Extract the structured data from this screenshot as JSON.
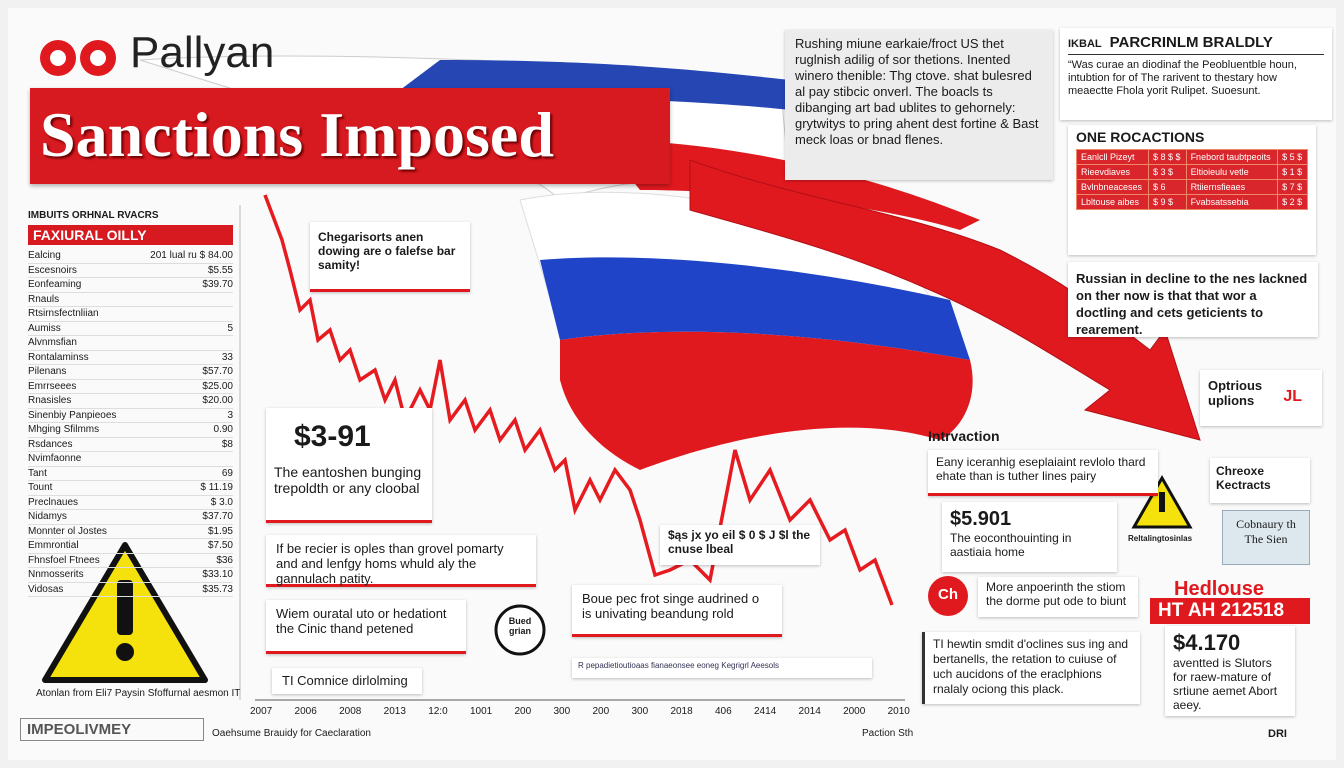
{
  "header": {
    "brand": "Pallyan",
    "title": "Sanctions Imposed"
  },
  "left_panel": {
    "caption": "IMBUITS ORHNAL RVACRS",
    "banner": "FAXIURAL OILLY",
    "rows": [
      {
        "label": "Ealcing",
        "value": "201 lual ru $ 84.00"
      },
      {
        "label": "Escesnoirs",
        "value": "$5.55"
      },
      {
        "label": "Eonfeaming",
        "value": "$39.70"
      },
      {
        "label": "Rnauls"
      },
      {
        "label": "Rtsirnsfectnliian"
      },
      {
        "label": "Aumiss",
        "value": "5"
      },
      {
        "label": "Alvnmsfian"
      },
      {
        "label": "Rontalaminss",
        "value": "33"
      },
      {
        "label": "Pilenans",
        "value": "$57.70"
      },
      {
        "label": "Emrrseees",
        "value": "$25.00"
      },
      {
        "label": "Rnasisles",
        "value": "$20.00"
      },
      {
        "label": "Sinenbiy Panpieoes",
        "value": "3"
      },
      {
        "label": "Mhging Sfilmms",
        "value": "0.90"
      },
      {
        "label": "Rsdances",
        "value": "$8"
      },
      {
        "label": "Nvimfaonne"
      },
      {
        "label": "Tant",
        "value": "69"
      },
      {
        "label": "Tount",
        "value": "$ 11.19"
      },
      {
        "label": "Preclnaues",
        "value": "$ 3.0"
      },
      {
        "label": "Nidamys",
        "value": "$37.70"
      },
      {
        "label": "Monnter ol Jostes",
        "value": "$1.95"
      },
      {
        "label": "Emmrontial",
        "value": "$7.50"
      },
      {
        "label": "Fhnsfoel Ftnees",
        "value": "$36"
      },
      {
        "label": "Nnmosserits",
        "value": "$33.10"
      },
      {
        "label": "Vidosas",
        "value": "$35.73"
      }
    ],
    "footer": "Atonlan from Eli7 Paysin Sfoffurnal aesmon IT"
  },
  "bottom_left": {
    "logo": "IMPEOLIVMEY",
    "caption": "Oaehsume Brauidy for Caeclaration"
  },
  "top_note": {
    "text": "Rushing miune earkaie/froct US thet ruglnish adilig of sor thetions. Inented winero thenible: Thg ctove. shat bulesred al pay stibcic onverl. The boacls ts dibanging art bad ublites to gehornely: grytwitys to pring ahent dest fortine & Bast meck loas or bnad flenes."
  },
  "right_top": {
    "label": "IKBAL",
    "title": "PARCRINLM BRALDLY",
    "text": "“Was curae an diodinaf the Peobluentble houn, intubtion for of The rarivent to thestary how meaectte Fhola yorit Rulipet. Suoesunt."
  },
  "reactions": {
    "title": "ONE ROCACTIONS",
    "rows": [
      [
        "Eanlcll Pizeyt",
        "$ 8 $ $",
        "Fnebord taubtpeoits",
        "$ 5 $"
      ],
      [
        "Rieevdiaves",
        "$ 3 $",
        "Eltioieulu vetle",
        "$ 1 $"
      ],
      [
        "Bvlnbneaceses",
        "$ 6",
        "Rtiiernsfieaes",
        "$ 7 $"
      ],
      [
        "Lbltouse aibes",
        "$ 9 $",
        "Fvabsatssebia",
        "$ 2 $"
      ]
    ]
  },
  "decline_note": "Russian in decline to the nes lackned on ther now is that that wor a doctling and cets geticients to rearement.",
  "options": {
    "text": "Optrious uplions",
    "icon": "JL"
  },
  "callouts": {
    "c1": "Chegarisorts anen dowing are o falefse bar samity!",
    "c2_price": "$3-91",
    "c2": "The eantoshen bunging trepoldth or any cloobal",
    "c3": "If be recier is oples than grovel pomarty and and lenfgy homs whuld aly the gannulach patity.",
    "c4": "Wiem ouratal uto or hedationt the Cinic thand petened",
    "c5": "TI Comnice dirlolming",
    "c6": "$ąs jx yo eil $ 0 $ J $l the cnuse lbeal",
    "c7": "Boue pec frot singe audrined o is univating beandung rold",
    "c8": "R pepadietioutioaas fianaeonsee eoneg Kegrigrl Aeesols",
    "badge": "Bued grian"
  },
  "interaction": {
    "title": "Intrvaction",
    "text": "Eany iceranhig eseplaiaint revlolo thard ehate than is tuther lines pairy",
    "price": "$5.901",
    "price_text": "The eoconthouinting in aastiaia home",
    "ch_icon": "Ch",
    "ch_text": "More anpoerinth the stiom the dorme put ode to biunt",
    "bottom_text": "TI hewtin smdit d'oclines sus ing and bertanells, the retation to cuiuse of uch aucidons of the eraclphions rnalaly ociong this plack."
  },
  "warning_right": "Reltalingtosinlas",
  "check": {
    "title": "Chreoxe Kectracts",
    "note": "Cobnaury th The Sien"
  },
  "headline": {
    "brand": "Hedlouse",
    "banner": "HT AH 212518",
    "price": "$4.170",
    "text": "aventted is Slutors for raew-mature of srtiune aemet Abort aeey."
  },
  "axis": {
    "labels": [
      "2007",
      "2006",
      "2008",
      "2013",
      "12:0",
      "1001",
      "200",
      "300",
      "200",
      "300",
      "2018",
      "406",
      "2414",
      "2014",
      "2000",
      "2010"
    ]
  },
  "footer": {
    "right": "Paction Sth",
    "corner": "DRI"
  }
}
